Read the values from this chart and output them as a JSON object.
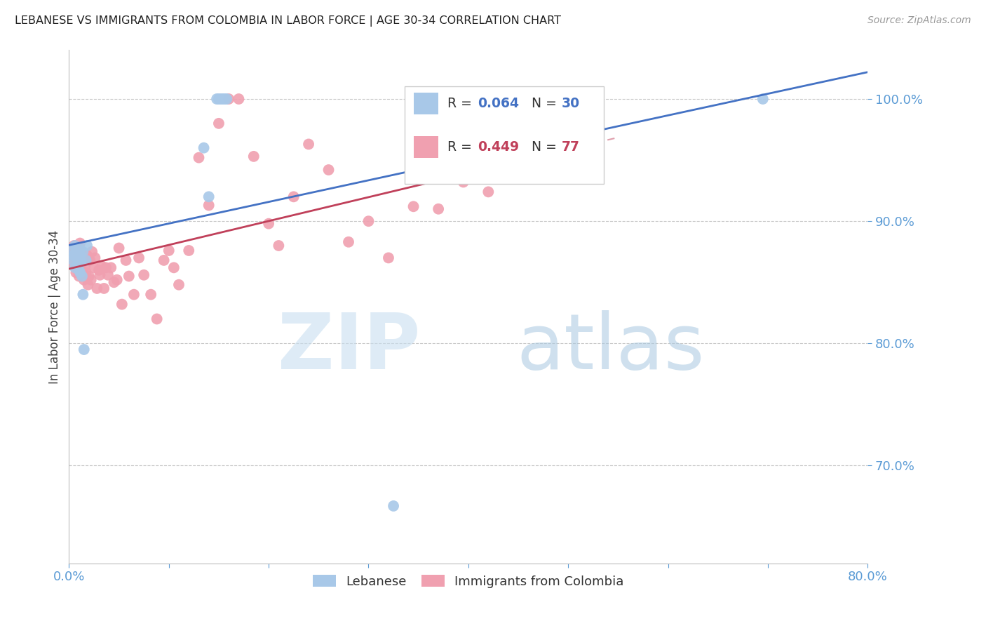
{
  "title": "LEBANESE VS IMMIGRANTS FROM COLOMBIA IN LABOR FORCE | AGE 30-34 CORRELATION CHART",
  "source": "Source: ZipAtlas.com",
  "ylabel": "In Labor Force | Age 30-34",
  "xlim": [
    0.0,
    0.8
  ],
  "ylim": [
    0.62,
    1.04
  ],
  "yticks": [
    0.7,
    0.8,
    0.9,
    1.0
  ],
  "ytick_labels": [
    "70.0%",
    "80.0%",
    "90.0%",
    "100.0%"
  ],
  "xticks": [
    0.0,
    0.1,
    0.2,
    0.3,
    0.4,
    0.5,
    0.6,
    0.7,
    0.8
  ],
  "xtick_labels": [
    "0.0%",
    "",
    "",
    "",
    "",
    "",
    "",
    "",
    "80.0%"
  ],
  "blue_color": "#A8C8E8",
  "pink_color": "#F0A0B0",
  "blue_line_color": "#4472C4",
  "pink_line_color": "#C0405A",
  "axis_color": "#5B9BD5",
  "grid_color": "#C8C8C8",
  "watermark_zip_color": "#C8DFF0",
  "watermark_atlas_color": "#A0C0DC",
  "blue_x": [
    0.003,
    0.004,
    0.005,
    0.006,
    0.006,
    0.007,
    0.008,
    0.009,
    0.009,
    0.01,
    0.01,
    0.011,
    0.011,
    0.012,
    0.013,
    0.014,
    0.014,
    0.015,
    0.017,
    0.018,
    0.135,
    0.14,
    0.148,
    0.15,
    0.152,
    0.154,
    0.156,
    0.158,
    0.325,
    0.695
  ],
  "blue_y": [
    0.876,
    0.868,
    0.872,
    0.862,
    0.88,
    0.875,
    0.87,
    0.865,
    0.878,
    0.86,
    0.875,
    0.858,
    0.873,
    0.867,
    0.855,
    0.84,
    0.875,
    0.795,
    0.868,
    0.88,
    0.96,
    0.92,
    1.0,
    1.0,
    1.0,
    1.0,
    1.0,
    1.0,
    0.667,
    1.0
  ],
  "pink_x": [
    0.003,
    0.004,
    0.005,
    0.005,
    0.006,
    0.007,
    0.007,
    0.008,
    0.008,
    0.009,
    0.01,
    0.01,
    0.01,
    0.011,
    0.011,
    0.012,
    0.012,
    0.013,
    0.013,
    0.014,
    0.015,
    0.015,
    0.016,
    0.017,
    0.018,
    0.019,
    0.02,
    0.021,
    0.022,
    0.023,
    0.025,
    0.026,
    0.028,
    0.03,
    0.031,
    0.033,
    0.035,
    0.037,
    0.039,
    0.042,
    0.045,
    0.048,
    0.05,
    0.053,
    0.057,
    0.06,
    0.065,
    0.07,
    0.075,
    0.082,
    0.088,
    0.095,
    0.1,
    0.105,
    0.11,
    0.12,
    0.13,
    0.14,
    0.15,
    0.16,
    0.17,
    0.185,
    0.2,
    0.21,
    0.225,
    0.24,
    0.26,
    0.28,
    0.3,
    0.32,
    0.345,
    0.37,
    0.395,
    0.42,
    0.45,
    0.475,
    0.505
  ],
  "pink_y": [
    0.875,
    0.872,
    0.865,
    0.88,
    0.873,
    0.87,
    0.858,
    0.865,
    0.876,
    0.86,
    0.865,
    0.878,
    0.855,
    0.868,
    0.882,
    0.862,
    0.875,
    0.858,
    0.87,
    0.858,
    0.868,
    0.852,
    0.863,
    0.858,
    0.872,
    0.848,
    0.855,
    0.868,
    0.852,
    0.875,
    0.862,
    0.87,
    0.845,
    0.86,
    0.856,
    0.863,
    0.845,
    0.862,
    0.856,
    0.862,
    0.85,
    0.852,
    0.878,
    0.832,
    0.868,
    0.855,
    0.84,
    0.87,
    0.856,
    0.84,
    0.82,
    0.868,
    0.876,
    0.862,
    0.848,
    0.876,
    0.952,
    0.913,
    0.98,
    1.0,
    1.0,
    0.953,
    0.898,
    0.88,
    0.92,
    0.963,
    0.942,
    0.883,
    0.9,
    0.87,
    0.912,
    0.91,
    0.932,
    0.924,
    0.942,
    0.952,
    0.958
  ]
}
